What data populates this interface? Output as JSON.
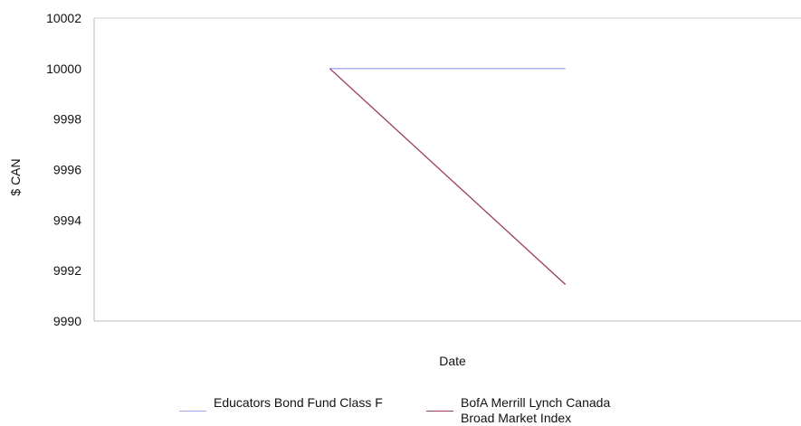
{
  "chart_data": {
    "type": "line",
    "title": "",
    "xlabel": "Date",
    "ylabel": "$ CAN",
    "ylim": [
      9990,
      10002
    ],
    "yticks": [
      9990,
      9992,
      9994,
      9996,
      9998,
      10000,
      10002
    ],
    "xlim": [
      0,
      3
    ],
    "x": [
      1,
      2
    ],
    "grid": false,
    "legend_position": "bottom",
    "series": [
      {
        "name": "Educators Bond Fund Class F",
        "values": [
          10000,
          10000
        ],
        "color": "#a0a8f0"
      },
      {
        "name": "BofA Merrill Lynch Canada Broad Market Index",
        "values": [
          10000,
          9991.45
        ],
        "color": "#9b3a64"
      }
    ]
  }
}
